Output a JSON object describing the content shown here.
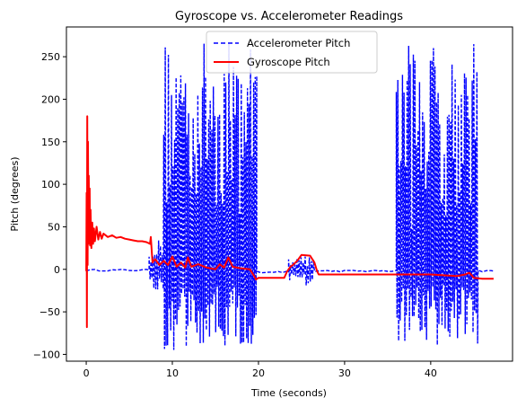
{
  "chart_data": {
    "type": "line",
    "title": "Gyroscope vs. Accelerometer Readings",
    "xlabel": "Time (seconds)",
    "ylabel": "Pitch (degrees)",
    "xlim": [
      -2.3,
      49.5
    ],
    "ylim": [
      -108,
      285
    ],
    "x_ticks": [
      0,
      10,
      20,
      30,
      40
    ],
    "y_ticks": [
      -100,
      -50,
      0,
      50,
      100,
      150,
      200,
      250
    ],
    "grid": false,
    "legend_position": "top-center",
    "series": [
      {
        "name": "Accelerometer Pitch",
        "color": "#0000ff",
        "style": "dashed",
        "segments": [
          {
            "t0": 0.0,
            "t1": 7.3,
            "kind": "flat",
            "base": -1
          },
          {
            "t0": 7.3,
            "t1": 9.0,
            "kind": "osc",
            "lo": -25,
            "hi": 35,
            "step": 0.11
          },
          {
            "t0": 9.0,
            "t1": 19.8,
            "kind": "osc",
            "lo": -95,
            "hi": 268,
            "step": 0.09
          },
          {
            "t0": 19.8,
            "t1": 23.5,
            "kind": "flat",
            "base": -3
          },
          {
            "t0": 23.5,
            "t1": 26.5,
            "kind": "osc",
            "lo": -20,
            "hi": 15,
            "step": 0.12
          },
          {
            "t0": 26.5,
            "t1": 36.0,
            "kind": "flat",
            "base": -2
          },
          {
            "t0": 36.0,
            "t1": 45.5,
            "kind": "osc",
            "lo": -92,
            "hi": 267,
            "step": 0.09
          },
          {
            "t0": 45.5,
            "t1": 47.3,
            "kind": "flat",
            "base": -2
          }
        ]
      },
      {
        "name": "Gyroscope Pitch",
        "color": "#ff0000",
        "style": "solid",
        "points": [
          [
            0.0,
            -2
          ],
          [
            0.05,
            90
          ],
          [
            0.08,
            -68
          ],
          [
            0.12,
            180
          ],
          [
            0.16,
            5
          ],
          [
            0.2,
            150
          ],
          [
            0.25,
            40
          ],
          [
            0.3,
            110
          ],
          [
            0.35,
            30
          ],
          [
            0.4,
            95
          ],
          [
            0.45,
            28
          ],
          [
            0.5,
            70
          ],
          [
            0.6,
            25
          ],
          [
            0.7,
            55
          ],
          [
            0.8,
            30
          ],
          [
            0.9,
            48
          ],
          [
            1.0,
            33
          ],
          [
            1.2,
            50
          ],
          [
            1.4,
            35
          ],
          [
            1.6,
            44
          ],
          [
            1.8,
            36
          ],
          [
            2.0,
            42
          ],
          [
            2.5,
            38
          ],
          [
            3.0,
            40
          ],
          [
            3.5,
            37
          ],
          [
            4.0,
            38
          ],
          [
            4.5,
            36
          ],
          [
            5.0,
            35
          ],
          [
            5.5,
            34
          ],
          [
            6.0,
            33
          ],
          [
            6.5,
            33
          ],
          [
            7.0,
            32
          ],
          [
            7.4,
            30
          ],
          [
            7.5,
            38
          ],
          [
            7.7,
            8
          ],
          [
            8.0,
            12
          ],
          [
            8.5,
            5
          ],
          [
            9.0,
            10
          ],
          [
            9.5,
            5
          ],
          [
            10.0,
            15
          ],
          [
            10.5,
            3
          ],
          [
            11.0,
            8
          ],
          [
            11.5,
            2
          ],
          [
            11.8,
            14
          ],
          [
            12.2,
            3
          ],
          [
            13.0,
            6
          ],
          [
            14.0,
            2
          ],
          [
            15.0,
            0
          ],
          [
            15.5,
            6
          ],
          [
            16.0,
            2
          ],
          [
            16.5,
            14
          ],
          [
            17.0,
            3
          ],
          [
            18.0,
            1
          ],
          [
            19.0,
            0
          ],
          [
            19.5,
            -8
          ],
          [
            19.7,
            -12
          ],
          [
            20.0,
            -10
          ],
          [
            23.0,
            -10
          ],
          [
            23.3,
            -3
          ],
          [
            23.7,
            3
          ],
          [
            24.0,
            5
          ],
          [
            24.5,
            10
          ],
          [
            25.0,
            17
          ],
          [
            26.0,
            16
          ],
          [
            26.5,
            8
          ],
          [
            26.8,
            -2
          ],
          [
            27.0,
            -6
          ],
          [
            30.0,
            -6
          ],
          [
            35.0,
            -6
          ],
          [
            40.0,
            -6
          ],
          [
            43.0,
            -8
          ],
          [
            44.0,
            -6
          ],
          [
            44.5,
            -4
          ],
          [
            45.0,
            -10
          ],
          [
            46.0,
            -11
          ],
          [
            47.3,
            -11
          ]
        ]
      }
    ]
  }
}
